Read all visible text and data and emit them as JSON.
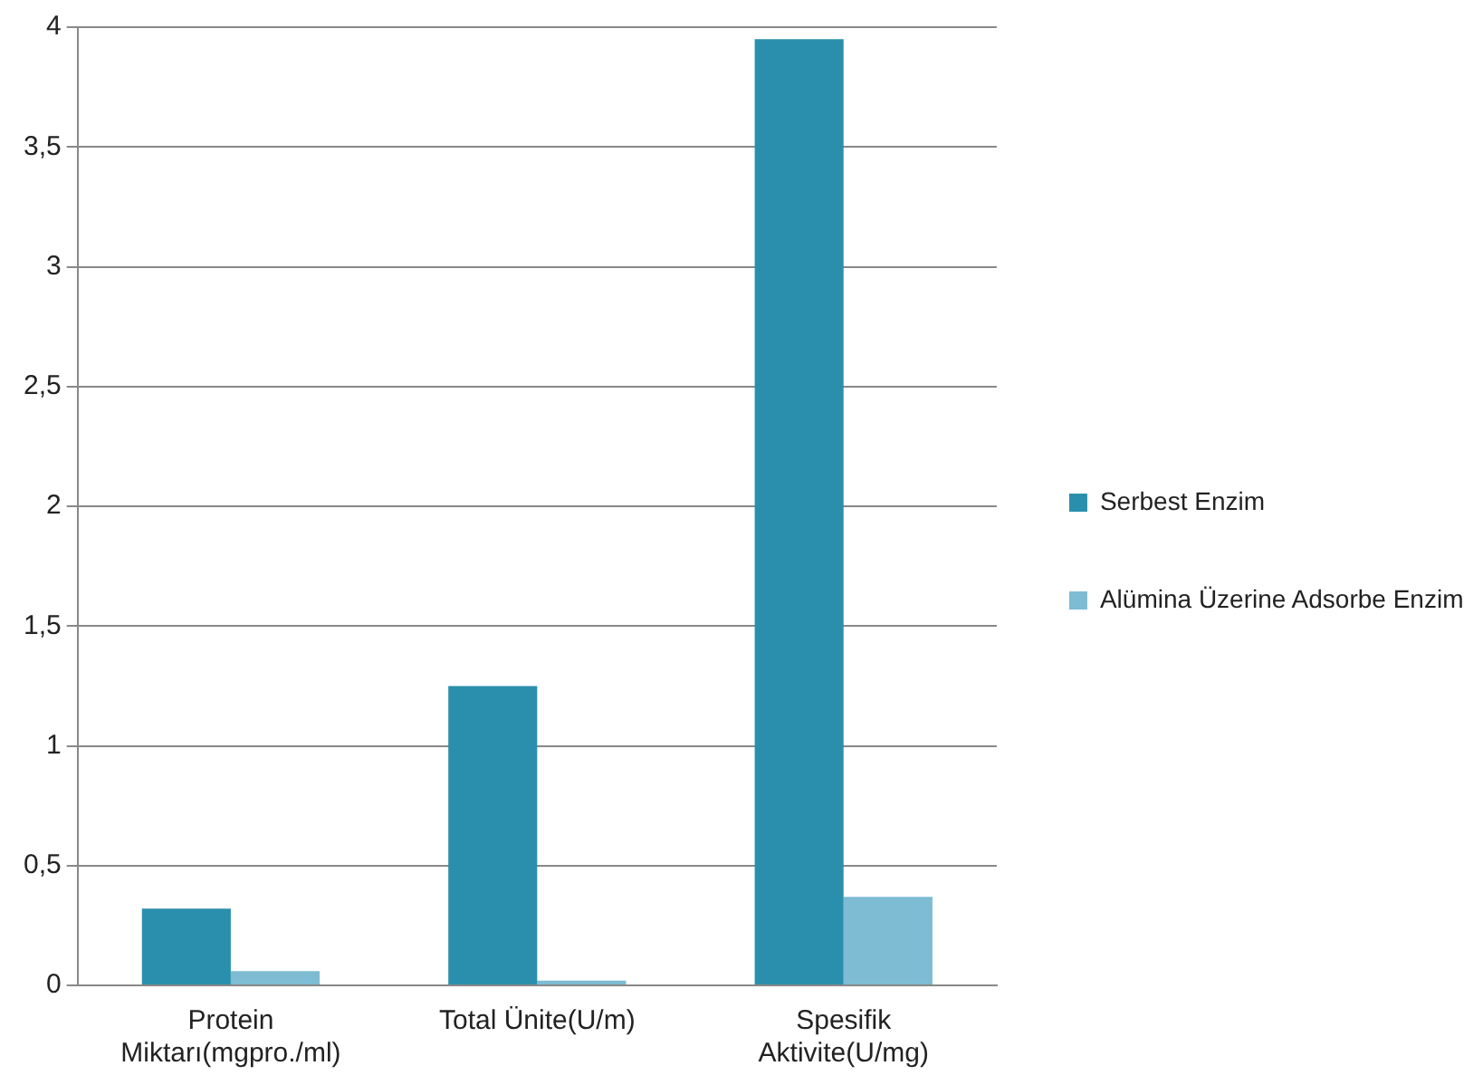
{
  "chart_data": {
    "type": "bar",
    "categories": [
      "Protein Miktarı(mgpro./ml)",
      "Total Ünite(U/m)",
      "Spesifik Aktivite(U/mg)"
    ],
    "series": [
      {
        "name": "Serbest Enzim",
        "color": "#2a8fac",
        "values": [
          0.32,
          1.25,
          3.95
        ]
      },
      {
        "name": "Alümina Üzerine Adsorbe Enzim",
        "color": "#7dbcd3",
        "values": [
          0.06,
          0.02,
          0.37
        ]
      }
    ],
    "ylim": [
      0,
      4
    ],
    "yticks": [
      {
        "value": 0,
        "label": "0"
      },
      {
        "value": 0.5,
        "label": "0,5"
      },
      {
        "value": 1,
        "label": "1"
      },
      {
        "value": 1.5,
        "label": "1,5"
      },
      {
        "value": 2,
        "label": "2"
      },
      {
        "value": 2.5,
        "label": "2,5"
      },
      {
        "value": 3,
        "label": "3"
      },
      {
        "value": 3.5,
        "label": "3,5"
      },
      {
        "value": 4,
        "label": "4"
      }
    ],
    "grid": "y",
    "legend": "right"
  }
}
